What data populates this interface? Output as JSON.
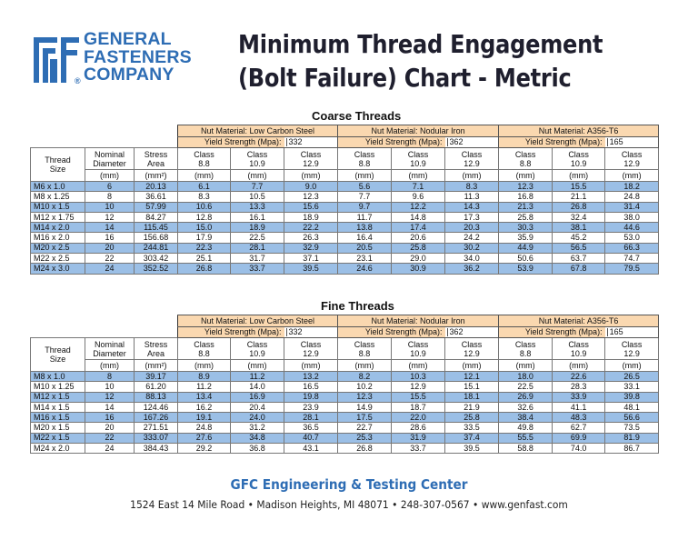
{
  "logo": {
    "lines": [
      "GENERAL",
      "FASTENERS",
      "COMPANY"
    ],
    "registered": "®",
    "icon": "gfc-logo-icon",
    "brand_color": "#2e6db4"
  },
  "title": {
    "line1": "Minimum Thread Engagement",
    "line2": "(Bolt Failure) Chart - Metric"
  },
  "colors": {
    "header_fill": "#fad8b0",
    "row_highlight": "#9bbfe6",
    "footer_blue": "#2e6db4"
  },
  "column_headers": {
    "thread_size": "Thread Size",
    "nominal_diameter": "Nominal Diameter",
    "stress_area": "Stress Area",
    "unit_mm": "(mm)",
    "unit_mm2": "(mm²)",
    "ys_label": "Yield Strength (Mpa):",
    "classes": [
      "Class 8.8",
      "Class 10.9",
      "Class 12.9"
    ]
  },
  "materials": [
    {
      "name": "Nut Material: Low Carbon Steel",
      "yield": "332"
    },
    {
      "name": "Nut Material: Nodular Iron",
      "yield": "362"
    },
    {
      "name": "Nut Material: A356-T6",
      "yield": "165"
    }
  ],
  "coarse": {
    "title": "Coarse Threads",
    "rows": [
      {
        "size": "M6 x 1.0",
        "diam": "6",
        "area": "20.13",
        "v": [
          "6.1",
          "7.7",
          "9.0",
          "5.6",
          "7.1",
          "8.3",
          "12.3",
          "15.5",
          "18.2"
        ],
        "hl": true
      },
      {
        "size": "M8 x 1.25",
        "diam": "8",
        "area": "36.61",
        "v": [
          "8.3",
          "10.5",
          "12.3",
          "7.7",
          "9.6",
          "11.3",
          "16.8",
          "21.1",
          "24.8"
        ],
        "hl": false
      },
      {
        "size": "M10 x 1.5",
        "diam": "10",
        "area": "57.99",
        "v": [
          "10.6",
          "13.3",
          "15.6",
          "9.7",
          "12.2",
          "14.3",
          "21.3",
          "26.8",
          "31.4"
        ],
        "hl": true
      },
      {
        "size": "M12 x 1.75",
        "diam": "12",
        "area": "84.27",
        "v": [
          "12.8",
          "16.1",
          "18.9",
          "11.7",
          "14.8",
          "17.3",
          "25.8",
          "32.4",
          "38.0"
        ],
        "hl": false
      },
      {
        "size": "M14 x 2.0",
        "diam": "14",
        "area": "115.45",
        "v": [
          "15.0",
          "18.9",
          "22.2",
          "13.8",
          "17.4",
          "20.3",
          "30.3",
          "38.1",
          "44.6"
        ],
        "hl": true
      },
      {
        "size": "M16 x 2.0",
        "diam": "16",
        "area": "156.68",
        "v": [
          "17.9",
          "22.5",
          "26.3",
          "16.4",
          "20.6",
          "24.2",
          "35.9",
          "45.2",
          "53.0"
        ],
        "hl": false
      },
      {
        "size": "M20 x 2.5",
        "diam": "20",
        "area": "244.81",
        "v": [
          "22.3",
          "28.1",
          "32.9",
          "20.5",
          "25.8",
          "30.2",
          "44.9",
          "56.5",
          "66.3"
        ],
        "hl": true
      },
      {
        "size": "M22 x 2.5",
        "diam": "22",
        "area": "303.42",
        "v": [
          "25.1",
          "31.7",
          "37.1",
          "23.1",
          "29.0",
          "34.0",
          "50.6",
          "63.7",
          "74.7"
        ],
        "hl": false
      },
      {
        "size": "M24 x 3.0",
        "diam": "24",
        "area": "352.52",
        "v": [
          "26.8",
          "33.7",
          "39.5",
          "24.6",
          "30.9",
          "36.2",
          "53.9",
          "67.8",
          "79.5"
        ],
        "hl": true
      }
    ]
  },
  "fine": {
    "title": "Fine Threads",
    "rows": [
      {
        "size": "M8 x 1.0",
        "diam": "8",
        "area": "39.17",
        "v": [
          "8.9",
          "11.2",
          "13.2",
          "8.2",
          "10.3",
          "12.1",
          "18.0",
          "22.6",
          "26.5"
        ],
        "hl": true
      },
      {
        "size": "M10 x 1.25",
        "diam": "10",
        "area": "61.20",
        "v": [
          "11.2",
          "14.0",
          "16.5",
          "10.2",
          "12.9",
          "15.1",
          "22.5",
          "28.3",
          "33.1"
        ],
        "hl": false
      },
      {
        "size": "M12 x 1.5",
        "diam": "12",
        "area": "88.13",
        "v": [
          "13.4",
          "16.9",
          "19.8",
          "12.3",
          "15.5",
          "18.1",
          "26.9",
          "33.9",
          "39.8"
        ],
        "hl": true
      },
      {
        "size": "M14 x 1.5",
        "diam": "14",
        "area": "124.46",
        "v": [
          "16.2",
          "20.4",
          "23.9",
          "14.9",
          "18.7",
          "21.9",
          "32.6",
          "41.1",
          "48.1"
        ],
        "hl": false
      },
      {
        "size": "M16 x 1.5",
        "diam": "16",
        "area": "167.26",
        "v": [
          "19.1",
          "24.0",
          "28.1",
          "17.5",
          "22.0",
          "25.8",
          "38.4",
          "48.3",
          "56.6"
        ],
        "hl": true
      },
      {
        "size": "M20 x 1.5",
        "diam": "20",
        "area": "271.51",
        "v": [
          "24.8",
          "31.2",
          "36.5",
          "22.7",
          "28.6",
          "33.5",
          "49.8",
          "62.7",
          "73.5"
        ],
        "hl": false
      },
      {
        "size": "M22 x 1.5",
        "diam": "22",
        "area": "333.07",
        "v": [
          "27.6",
          "34.8",
          "40.7",
          "25.3",
          "31.9",
          "37.4",
          "55.5",
          "69.9",
          "81.9"
        ],
        "hl": true
      },
      {
        "size": "M24 x 2.0",
        "diam": "24",
        "area": "384.43",
        "v": [
          "29.2",
          "36.8",
          "43.1",
          "26.8",
          "33.7",
          "39.5",
          "58.8",
          "74.0",
          "86.7"
        ],
        "hl": false
      }
    ]
  },
  "footer": {
    "title": "GFC Engineering & Testing Center",
    "address": "1524 East 14 Mile Road  •  Madison Heights, MI  48071  •  248-307-0567  •  www.genfast.com"
  }
}
